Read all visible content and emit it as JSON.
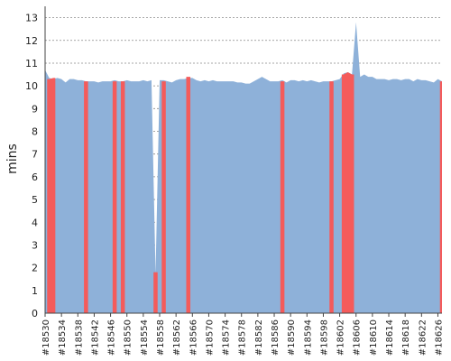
{
  "chart_data": {
    "type": "area",
    "title": "",
    "xlabel": "",
    "ylabel": "mins",
    "ylim": [
      0,
      13.5
    ],
    "yticks": [
      0,
      1,
      2,
      3,
      4,
      5,
      6,
      7,
      8,
      9,
      10,
      11,
      12,
      13
    ],
    "grid": true,
    "grid_style": "dotted",
    "x_builds": [
      18530,
      18627
    ],
    "x_tick_labels": [
      "#18530",
      "#18534",
      "#18538",
      "#18542",
      "#18546",
      "#18550",
      "#18554",
      "#18558",
      "#18562",
      "#18566",
      "#18570",
      "#18574",
      "#18578",
      "#18582",
      "#18586",
      "#18590",
      "#18594",
      "#18598",
      "#18602",
      "#18606",
      "#18610",
      "#18614",
      "#18618",
      "#18622",
      "#18626"
    ],
    "series": [
      {
        "color": "#8eb1d9",
        "points": [
          [
            18530,
            10.7
          ],
          [
            18531,
            10.35
          ],
          [
            18532,
            10.3
          ],
          [
            18533,
            10.35
          ],
          [
            18534,
            10.3
          ],
          [
            18535,
            10.15
          ],
          [
            18536,
            10.3
          ],
          [
            18537,
            10.3
          ],
          [
            18538,
            10.25
          ],
          [
            18539,
            10.25
          ],
          [
            18540,
            10.2
          ],
          [
            18541,
            10.2
          ],
          [
            18542,
            10.2
          ],
          [
            18543,
            10.15
          ],
          [
            18544,
            10.2
          ],
          [
            18545,
            10.2
          ],
          [
            18546,
            10.2
          ],
          [
            18547,
            10.25
          ],
          [
            18548,
            10.2
          ],
          [
            18549,
            10.2
          ],
          [
            18550,
            10.25
          ],
          [
            18551,
            10.2
          ],
          [
            18552,
            10.2
          ],
          [
            18553,
            10.2
          ],
          [
            18554,
            10.25
          ],
          [
            18555,
            10.2
          ],
          [
            18556,
            10.25
          ],
          [
            18557,
            1.75
          ],
          [
            18558,
            10.25
          ],
          [
            18559,
            10.25
          ],
          [
            18560,
            10.2
          ],
          [
            18561,
            10.15
          ],
          [
            18562,
            10.25
          ],
          [
            18563,
            10.3
          ],
          [
            18564,
            10.3
          ],
          [
            18565,
            10.35
          ],
          [
            18566,
            10.35
          ],
          [
            18567,
            10.25
          ],
          [
            18568,
            10.2
          ],
          [
            18569,
            10.25
          ],
          [
            18570,
            10.2
          ],
          [
            18571,
            10.25
          ],
          [
            18572,
            10.2
          ],
          [
            18573,
            10.2
          ],
          [
            18574,
            10.2
          ],
          [
            18575,
            10.2
          ],
          [
            18576,
            10.2
          ],
          [
            18577,
            10.15
          ],
          [
            18578,
            10.15
          ],
          [
            18579,
            10.1
          ],
          [
            18580,
            10.1
          ],
          [
            18581,
            10.2
          ],
          [
            18582,
            10.3
          ],
          [
            18583,
            10.4
          ],
          [
            18584,
            10.3
          ],
          [
            18585,
            10.2
          ],
          [
            18586,
            10.2
          ],
          [
            18587,
            10.2
          ],
          [
            18588,
            10.25
          ],
          [
            18589,
            10.15
          ],
          [
            18590,
            10.25
          ],
          [
            18591,
            10.25
          ],
          [
            18592,
            10.2
          ],
          [
            18593,
            10.25
          ],
          [
            18594,
            10.2
          ],
          [
            18595,
            10.25
          ],
          [
            18596,
            10.2
          ],
          [
            18597,
            10.15
          ],
          [
            18598,
            10.2
          ],
          [
            18599,
            10.2
          ],
          [
            18600,
            10.2
          ],
          [
            18601,
            10.25
          ],
          [
            18602,
            10.3
          ],
          [
            18603,
            10.55
          ],
          [
            18604,
            10.6
          ],
          [
            18605,
            10.5
          ],
          [
            18606,
            12.8
          ],
          [
            18607,
            10.4
          ],
          [
            18608,
            10.5
          ],
          [
            18609,
            10.4
          ],
          [
            18610,
            10.4
          ],
          [
            18611,
            10.3
          ],
          [
            18612,
            10.3
          ],
          [
            18613,
            10.3
          ],
          [
            18614,
            10.25
          ],
          [
            18615,
            10.3
          ],
          [
            18616,
            10.3
          ],
          [
            18617,
            10.25
          ],
          [
            18618,
            10.3
          ],
          [
            18619,
            10.3
          ],
          [
            18620,
            10.2
          ],
          [
            18621,
            10.3
          ],
          [
            18622,
            10.25
          ],
          [
            18623,
            10.25
          ],
          [
            18624,
            10.2
          ],
          [
            18625,
            10.15
          ],
          [
            18626,
            10.3
          ],
          [
            18627,
            10.2
          ]
        ]
      },
      {
        "color": "#f45b5b",
        "points": [
          [
            18531,
            10.3
          ],
          [
            18532,
            10.35
          ],
          [
            18540,
            10.2
          ],
          [
            18547,
            10.2
          ],
          [
            18549,
            10.2
          ],
          [
            18557,
            1.8
          ],
          [
            18559,
            10.2
          ],
          [
            18565,
            10.4
          ],
          [
            18588,
            10.2
          ],
          [
            18600,
            10.2
          ],
          [
            18603,
            10.5
          ],
          [
            18604,
            10.6
          ],
          [
            18605,
            10.5
          ],
          [
            18627,
            10.2
          ]
        ]
      }
    ]
  }
}
